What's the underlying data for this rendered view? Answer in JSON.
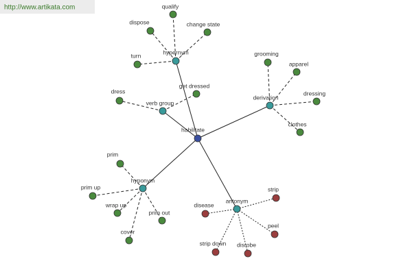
{
  "header": {
    "url": "http://www.artikata.com"
  },
  "center": {
    "label": "habilitate"
  },
  "relations": [
    {
      "label": "hypernym",
      "leaves": [
        {
          "label": "qualify"
        },
        {
          "label": "dispose"
        },
        {
          "label": "change state"
        },
        {
          "label": "turn"
        }
      ]
    },
    {
      "label": "verb group",
      "leaves": [
        {
          "label": "dress"
        },
        {
          "label": "get dressed"
        }
      ]
    },
    {
      "label": "derivation",
      "leaves": [
        {
          "label": "grooming"
        },
        {
          "label": "apparel"
        },
        {
          "label": "dressing"
        },
        {
          "label": "clothes"
        }
      ]
    },
    {
      "label": "hyponym",
      "leaves": [
        {
          "label": "prim"
        },
        {
          "label": "prim up"
        },
        {
          "label": "wrap up"
        },
        {
          "label": "prim out"
        },
        {
          "label": "cover"
        }
      ]
    },
    {
      "label": "antonym",
      "leaves": [
        {
          "label": "strip"
        },
        {
          "label": "disease"
        },
        {
          "label": "peel"
        },
        {
          "label": "strip down"
        },
        {
          "label": "disrobe"
        }
      ]
    }
  ]
}
